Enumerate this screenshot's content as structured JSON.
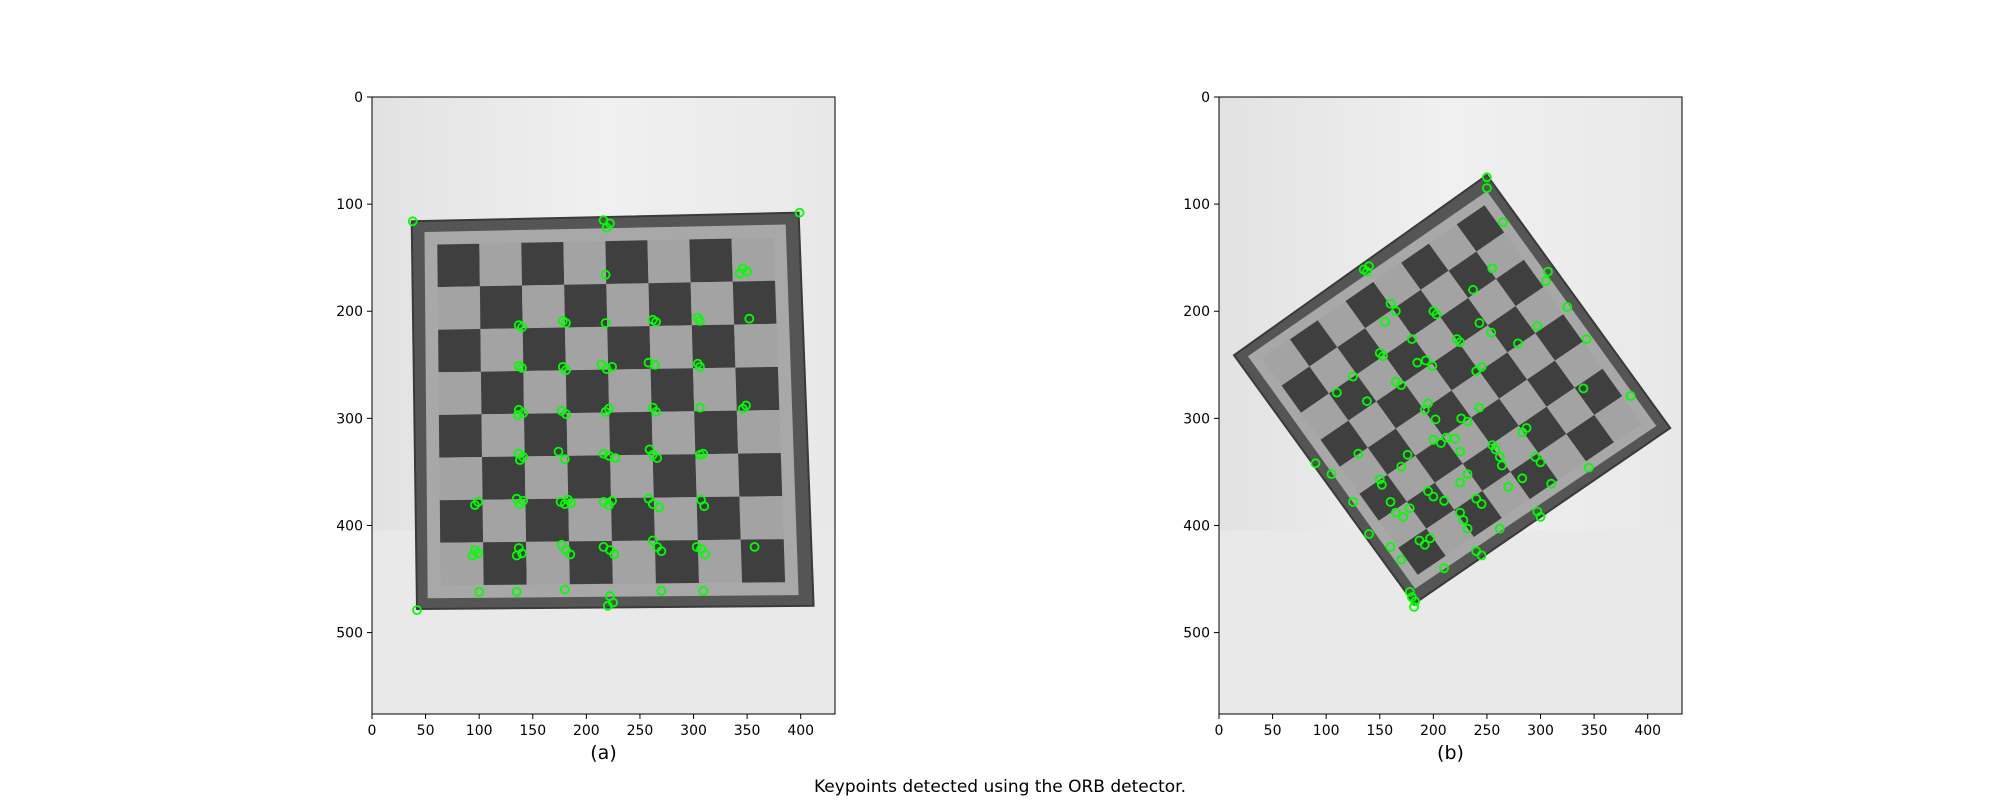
{
  "figure": {
    "caption": "Keypoints detected using the ORB detector.",
    "keypoint_color": "#00ff00",
    "board_dark_color": "#3f3f3f",
    "board_light_color": "#a8a8a8",
    "background_color": "#e6e6e6"
  },
  "chart_data": [
    {
      "type": "scatter",
      "subcaption": "(a)",
      "image_extent": {
        "x": [
          0,
          432
        ],
        "y": [
          0,
          576
        ]
      },
      "xlim": [
        0,
        432
      ],
      "ylim": [
        576,
        0
      ],
      "x_ticks": [
        0,
        50,
        100,
        150,
        200,
        250,
        300,
        350,
        400
      ],
      "y_ticks": [
        0,
        100,
        200,
        300,
        400,
        500
      ],
      "board": {
        "outer": [
          [
            37,
            116
          ],
          [
            398,
            108
          ],
          [
            412,
            475
          ],
          [
            42,
            478
          ]
        ],
        "inner": [
          [
            49,
            126
          ],
          [
            386,
            119
          ],
          [
            398,
            465
          ],
          [
            52,
            468
          ]
        ],
        "grid": 8
      },
      "keypoints": [
        [
          38,
          116
        ],
        [
          42,
          479
        ],
        [
          399,
          108
        ],
        [
          216,
          115
        ],
        [
          219,
          122
        ],
        [
          222,
          118
        ],
        [
          218,
          166
        ],
        [
          346,
          160
        ],
        [
          350,
          163
        ],
        [
          343,
          165
        ],
        [
          137,
          213
        ],
        [
          140,
          215
        ],
        [
          178,
          209
        ],
        [
          181,
          211
        ],
        [
          218,
          211
        ],
        [
          262,
          208
        ],
        [
          265,
          210
        ],
        [
          304,
          206
        ],
        [
          306,
          209
        ],
        [
          352,
          207
        ],
        [
          137,
          251
        ],
        [
          140,
          253
        ],
        [
          178,
          252
        ],
        [
          181,
          255
        ],
        [
          214,
          250
        ],
        [
          219,
          254
        ],
        [
          224,
          252
        ],
        [
          258,
          248
        ],
        [
          264,
          250
        ],
        [
          304,
          249
        ],
        [
          306,
          252
        ],
        [
          137,
          292
        ],
        [
          141,
          295
        ],
        [
          136,
          297
        ],
        [
          177,
          293
        ],
        [
          181,
          296
        ],
        [
          218,
          294
        ],
        [
          221,
          291
        ],
        [
          262,
          290
        ],
        [
          265,
          294
        ],
        [
          306,
          290
        ],
        [
          346,
          291
        ],
        [
          349,
          288
        ],
        [
          137,
          333
        ],
        [
          141,
          336
        ],
        [
          138,
          339
        ],
        [
          174,
          331
        ],
        [
          180,
          338
        ],
        [
          216,
          333
        ],
        [
          221,
          335
        ],
        [
          227,
          337
        ],
        [
          259,
          329
        ],
        [
          262,
          334
        ],
        [
          266,
          337
        ],
        [
          306,
          334
        ],
        [
          309,
          333
        ],
        [
          96,
          381
        ],
        [
          99,
          378
        ],
        [
          135,
          375
        ],
        [
          138,
          380
        ],
        [
          141,
          377
        ],
        [
          176,
          378
        ],
        [
          180,
          380
        ],
        [
          183,
          376
        ],
        [
          186,
          379
        ],
        [
          216,
          378
        ],
        [
          221,
          381
        ],
        [
          224,
          377
        ],
        [
          258,
          375
        ],
        [
          262,
          380
        ],
        [
          268,
          383
        ],
        [
          307,
          376
        ],
        [
          310,
          382
        ],
        [
          96,
          423
        ],
        [
          99,
          426
        ],
        [
          94,
          428
        ],
        [
          137,
          421
        ],
        [
          140,
          426
        ],
        [
          135,
          428
        ],
        [
          177,
          418
        ],
        [
          181,
          423
        ],
        [
          185,
          427
        ],
        [
          216,
          420
        ],
        [
          222,
          423
        ],
        [
          226,
          427
        ],
        [
          262,
          414
        ],
        [
          266,
          420
        ],
        [
          270,
          424
        ],
        [
          303,
          420
        ],
        [
          307,
          422
        ],
        [
          311,
          427
        ],
        [
          357,
          420
        ],
        [
          100,
          462
        ],
        [
          135,
          462
        ],
        [
          180,
          460
        ],
        [
          222,
          466
        ],
        [
          225,
          472
        ],
        [
          220,
          475
        ],
        [
          270,
          461
        ],
        [
          309,
          461
        ]
      ]
    },
    {
      "type": "scatter",
      "subcaption": "(b)",
      "image_extent": {
        "x": [
          0,
          432
        ],
        "y": [
          0,
          576
        ]
      },
      "xlim": [
        0,
        432
      ],
      "ylim": [
        576,
        0
      ],
      "x_ticks": [
        0,
        50,
        100,
        150,
        200,
        250,
        300,
        350,
        400
      ],
      "y_ticks": [
        0,
        100,
        200,
        300,
        400,
        500
      ],
      "board": {
        "outer": [
          [
            250,
            73
          ],
          [
            421,
            309
          ],
          [
            182,
            473
          ],
          [
            14,
            241
          ]
        ],
        "inner": [
          [
            250,
            88
          ],
          [
            408,
            307
          ],
          [
            183,
            459
          ],
          [
            27,
            242
          ]
        ],
        "grid": 8
      },
      "keypoints": [
        [
          250,
          75
        ],
        [
          250,
          85
        ],
        [
          265,
          117
        ],
        [
          307,
          163
        ],
        [
          305,
          172
        ],
        [
          325,
          196
        ],
        [
          343,
          226
        ],
        [
          340,
          272
        ],
        [
          384,
          279
        ],
        [
          345,
          346
        ],
        [
          135,
          161
        ],
        [
          138,
          163
        ],
        [
          140,
          158
        ],
        [
          160,
          193
        ],
        [
          155,
          210
        ],
        [
          165,
          200
        ],
        [
          200,
          200
        ],
        [
          203,
          203
        ],
        [
          237,
          180
        ],
        [
          255,
          160
        ],
        [
          150,
          239
        ],
        [
          153,
          242
        ],
        [
          180,
          226
        ],
        [
          185,
          248
        ],
        [
          193,
          246
        ],
        [
          199,
          251
        ],
        [
          222,
          226
        ],
        [
          225,
          229
        ],
        [
          243,
          211
        ],
        [
          254,
          220
        ],
        [
          279,
          230
        ],
        [
          297,
          214
        ],
        [
          110,
          276
        ],
        [
          125,
          261
        ],
        [
          138,
          284
        ],
        [
          165,
          266
        ],
        [
          170,
          269
        ],
        [
          195,
          286
        ],
        [
          192,
          292
        ],
        [
          202,
          301
        ],
        [
          220,
          319
        ],
        [
          226,
          300
        ],
        [
          232,
          303
        ],
        [
          243,
          290
        ],
        [
          240,
          256
        ],
        [
          245,
          252
        ],
        [
          283,
          313
        ],
        [
          287,
          309
        ],
        [
          90,
          342
        ],
        [
          105,
          352
        ],
        [
          130,
          333
        ],
        [
          150,
          357
        ],
        [
          152,
          362
        ],
        [
          170,
          345
        ],
        [
          176,
          334
        ],
        [
          200,
          320
        ],
        [
          207,
          323
        ],
        [
          212,
          318
        ],
        [
          225,
          331
        ],
        [
          255,
          325
        ],
        [
          258,
          329
        ],
        [
          262,
          336
        ],
        [
          264,
          344
        ],
        [
          295,
          336
        ],
        [
          300,
          341
        ],
        [
          125,
          378
        ],
        [
          160,
          378
        ],
        [
          165,
          388
        ],
        [
          172,
          392
        ],
        [
          178,
          384
        ],
        [
          195,
          368
        ],
        [
          200,
          373
        ],
        [
          210,
          377
        ],
        [
          225,
          360
        ],
        [
          232,
          352
        ],
        [
          240,
          375
        ],
        [
          245,
          380
        ],
        [
          270,
          364
        ],
        [
          283,
          356
        ],
        [
          310,
          361
        ],
        [
          140,
          408
        ],
        [
          160,
          420
        ],
        [
          187,
          414
        ],
        [
          192,
          418
        ],
        [
          197,
          412
        ],
        [
          225,
          388
        ],
        [
          228,
          395
        ],
        [
          232,
          403
        ],
        [
          240,
          424
        ],
        [
          245,
          428
        ],
        [
          262,
          403
        ],
        [
          297,
          387
        ],
        [
          300,
          392
        ],
        [
          170,
          432
        ],
        [
          178,
          462
        ],
        [
          180,
          467
        ],
        [
          183,
          471
        ],
        [
          182,
          476
        ],
        [
          210,
          440
        ]
      ]
    }
  ]
}
